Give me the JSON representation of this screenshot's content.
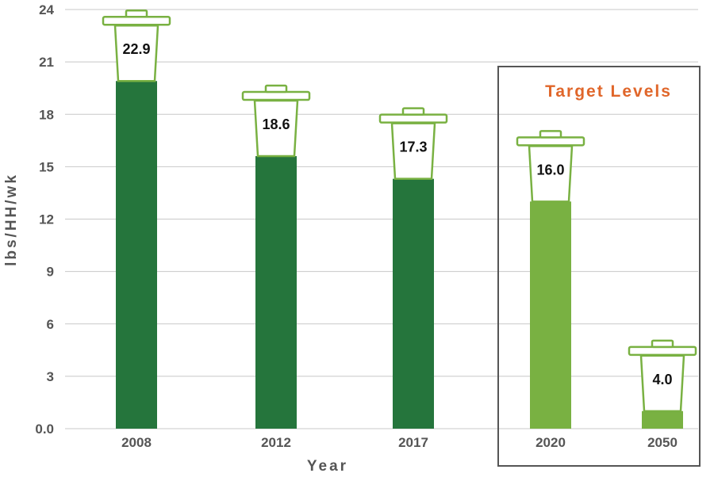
{
  "chart_data": {
    "type": "bar",
    "title": "",
    "xlabel": "Year",
    "ylabel": "lbs/HH/wk",
    "ylim": [
      0,
      24
    ],
    "yticks": [
      "0.0",
      "3",
      "6",
      "9",
      "12",
      "15",
      "18",
      "21",
      "24"
    ],
    "grid": true,
    "categories": [
      "2008",
      "2012",
      "2017",
      "2020",
      "2050"
    ],
    "values": [
      22.9,
      18.6,
      17.3,
      16.0,
      4.0
    ],
    "value_labels": [
      "22.9",
      "18.6",
      "17.3",
      "16.0",
      "4.0"
    ],
    "target_categories": [
      "2020",
      "2050"
    ],
    "target_box_label": "Target Levels",
    "colors": {
      "actual": "#25753c",
      "target": "#79b142",
      "can_outline": "#79b142",
      "target_label": "#e0662a",
      "box": "#555555",
      "grid": "#c8c8c8"
    }
  }
}
